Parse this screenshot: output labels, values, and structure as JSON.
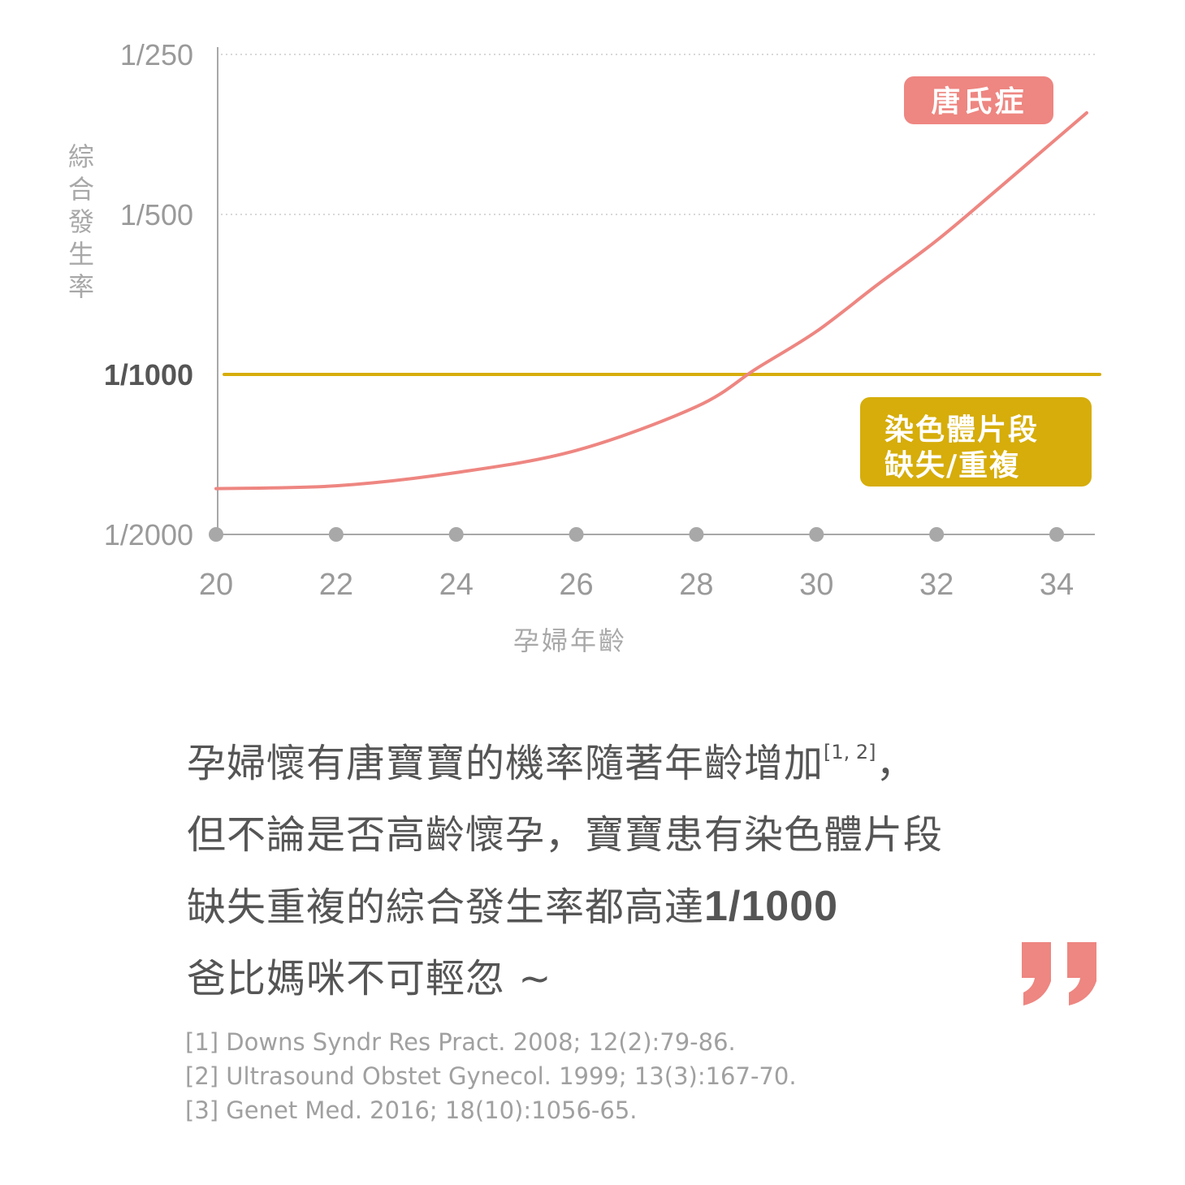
{
  "chart_data": {
    "type": "line",
    "y_axis_title": "綜合發生率",
    "x_axis_title": "孕婦年齡",
    "y_scale": "log",
    "y_ticks": [
      "1/250",
      "1/500",
      "1/1000",
      "1/2000"
    ],
    "y_tick_values": [
      250,
      500,
      1000,
      2000
    ],
    "highlighted_y_tick": "1/1000",
    "x_ticks": [
      "20",
      "22",
      "24",
      "26",
      "28",
      "30",
      "32",
      "34"
    ],
    "x_tick_values": [
      20,
      22,
      24,
      26,
      28,
      30,
      32,
      34
    ],
    "xlim": [
      20,
      34.6
    ],
    "grid": "dotted horizontal at 1/250 and 1/500",
    "series": [
      {
        "name": "唐氏症",
        "color": "#ee8681",
        "x": [
          20,
          22,
          24,
          26,
          28,
          29,
          30,
          31,
          32,
          33,
          34,
          34.5
        ],
        "y": [
          1640,
          1620,
          1530,
          1390,
          1150,
          975,
          830,
          680,
          560,
          450,
          360,
          322
        ]
      },
      {
        "name": "染色體片段缺失/重複",
        "color": "#d6ad0a",
        "x": [
          20,
          34.6
        ],
        "y": [
          1000,
          1000
        ]
      }
    ]
  },
  "labels": {
    "down": "唐氏症",
    "microdeletion_line1": "染色體片段",
    "microdeletion_line2": "缺失/重複"
  },
  "colors": {
    "accent_pink": "#ee8681",
    "accent_gold": "#d6ad0a",
    "axis_gray": "#a8a8a8",
    "text_gray": "#555555"
  },
  "quote": {
    "open_mark": "“",
    "close_mark": "”",
    "line1": "孕婦懷有唐寶寶的機率隨著年齡增加",
    "line1_sup": "[1, 2]",
    "line1_end": "，",
    "line2": "但不論是否高齡懷孕，寶寶患有染色體片段",
    "line3": "缺失重複的綜合發生率都高達",
    "line3_bold": "1/1000",
    "line4": "爸比媽咪不可輕忽 ~"
  },
  "references": [
    "[1] Downs Syndr Res Pract. 2008; 12(2):79-86.",
    "[2] Ultrasound Obstet Gynecol. 1999; 13(3):167-70.",
    "[3] Genet Med. 2016; 18(10):1056-65."
  ]
}
